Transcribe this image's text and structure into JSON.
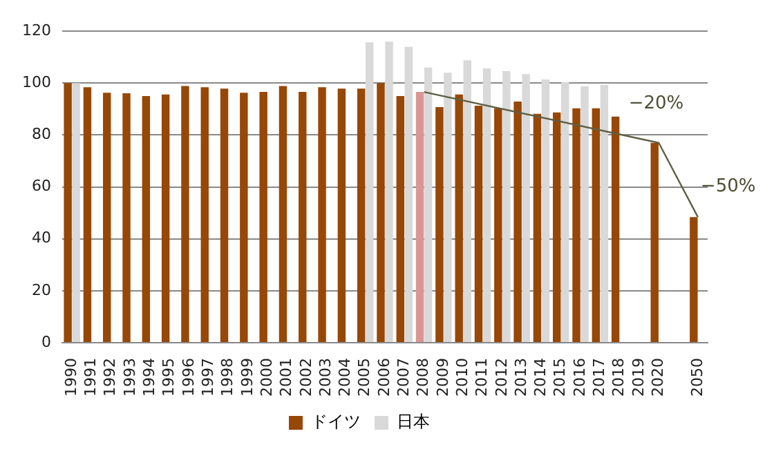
{
  "chart_data": {
    "type": "bar",
    "categories": [
      "1990",
      "1991",
      "1992",
      "1993",
      "1994",
      "1995",
      "1996",
      "1997",
      "1998",
      "1999",
      "2000",
      "2001",
      "2002",
      "2003",
      "2004",
      "2005",
      "2006",
      "2007",
      "2008",
      "2009",
      "2010",
      "2011",
      "2012",
      "2013",
      "2014",
      "2015",
      "2016",
      "2017",
      "2018",
      "2019",
      "2020",
      null,
      "2050"
    ],
    "series": [
      {
        "name": "ドイツ",
        "color": "#974706",
        "colors": [
          "#974706",
          "#974706",
          "#974706",
          "#974706",
          "#974706",
          "#974706",
          "#974706",
          "#974706",
          "#974706",
          "#974706",
          "#974706",
          "#974706",
          "#974706",
          "#974706",
          "#974706",
          "#974706",
          "#974706",
          "#974706",
          "#d99694",
          "#974706",
          "#974706",
          "#974706",
          "#974706",
          "#974706",
          "#974706",
          "#974706",
          "#974706",
          "#974706",
          "#974706",
          "#974706",
          "#974706",
          "#974706",
          "#974706"
        ],
        "values": [
          100,
          98.4,
          96.3,
          96.1,
          95,
          95.6,
          98.9,
          98.4,
          97.9,
          96.3,
          96.6,
          98.9,
          96.6,
          98.4,
          97.9,
          97.9,
          100,
          95,
          96.6,
          90.8,
          95.6,
          91.3,
          90.3,
          92.9,
          88.2,
          88.7,
          90.3,
          90.3,
          87.1,
          null,
          77,
          null,
          48.4
        ]
      },
      {
        "name": "日本",
        "color": "#d9d9d9",
        "values": [
          100,
          null,
          null,
          null,
          null,
          null,
          null,
          null,
          null,
          null,
          null,
          null,
          null,
          null,
          null,
          115.7,
          116,
          114,
          106,
          104,
          108.8,
          105.7,
          104.6,
          103.5,
          101.4,
          100.4,
          98.8,
          99.3,
          null,
          null,
          null,
          null,
          null
        ]
      },
      {
        "type": "line",
        "color": "#5f5f44",
        "values": [
          null,
          null,
          null,
          null,
          null,
          null,
          null,
          null,
          null,
          null,
          null,
          null,
          null,
          null,
          null,
          null,
          null,
          null,
          96.6,
          null,
          null,
          null,
          null,
          null,
          null,
          null,
          null,
          null,
          null,
          null,
          77,
          null,
          48.4
        ]
      }
    ],
    "annotations": [
      {
        "text": "−20%",
        "x": "2020",
        "y": 77
      },
      {
        "text": "−50%",
        "x": "2050",
        "y": 48.4
      }
    ],
    "ylim": [
      0,
      120
    ],
    "yticks": [
      0,
      20,
      40,
      60,
      80,
      100,
      120
    ],
    "grid": "y",
    "legend": "bottom",
    "marker": "none"
  }
}
